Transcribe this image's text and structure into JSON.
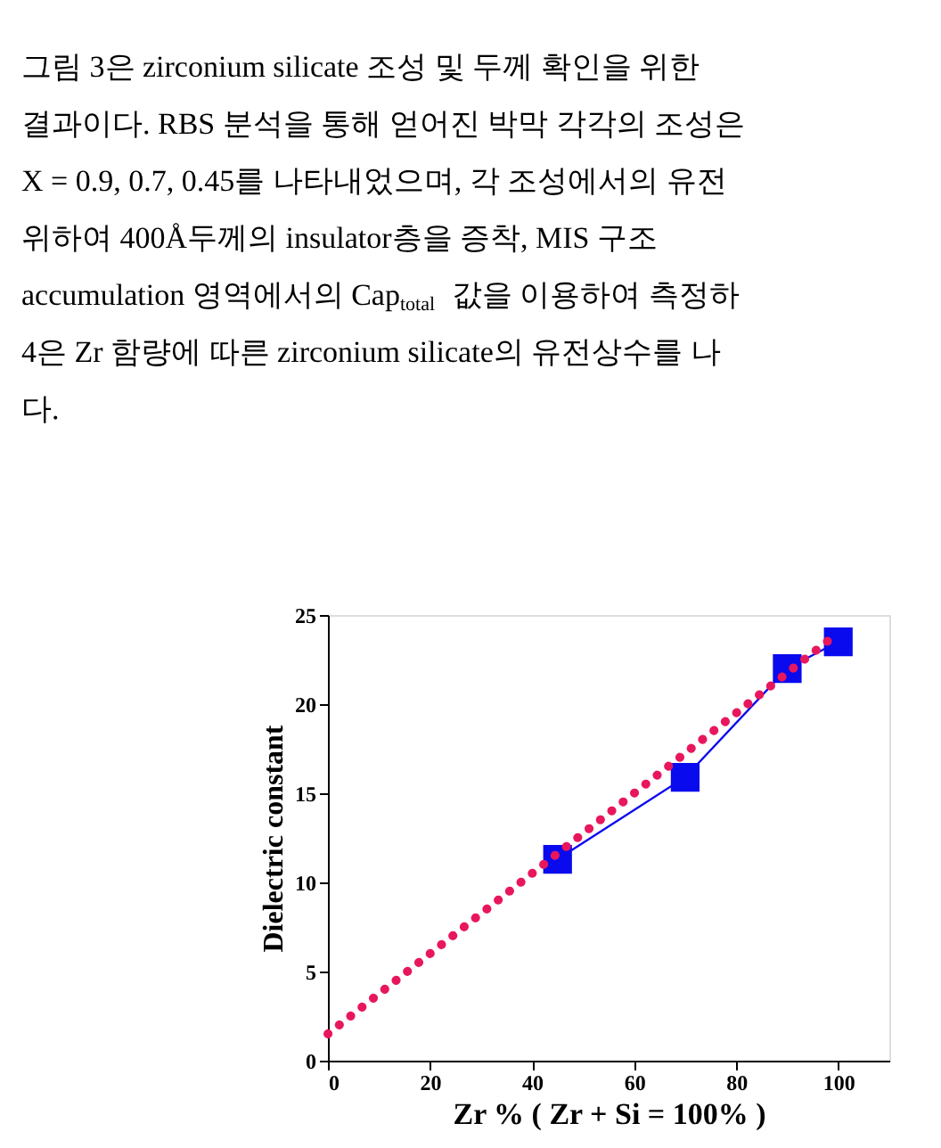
{
  "chart_data": {
    "type": "line",
    "xlabel": "Zr %   ( Zr + Si = 100% )",
    "ylabel": "Dielectric constant",
    "xlim": [
      0,
      110
    ],
    "xticks": [
      0,
      20,
      40,
      60,
      80,
      100
    ],
    "ylim": [
      0,
      25
    ],
    "yticks": [
      0,
      5,
      10,
      15,
      20,
      25
    ],
    "grid": false,
    "series": [
      {
        "color": "#0a0aee",
        "marker": "square",
        "line_style": "solid",
        "x": [
          45,
          70,
          90,
          100
        ],
        "values": [
          11.3,
          15.9,
          22,
          23.5
        ]
      },
      {
        "color": "#e8175d",
        "marker": "none",
        "line_style": "dotted",
        "x": [
          0,
          100
        ],
        "values": [
          1.5,
          24
        ]
      }
    ],
    "annotations": [
      "그림 3은 zirconium silicate 조성 및 두께 확인을 위한",
      "결과이다. RBS 분석을 통해 얻어진 박막 각각의 조성은",
      "X = 0.9, 0.7, 0.45를 나타내었으며, 각 조성에서의 유전",
      "위하여 400Å두께의 insulator층을 증착, MIS 구조",
      "accumulation 영역에서의 Cap$_{total}$ 값을 이용하여 측정하",
      "4은 Zr 함량에 따른 zirconium silicate의 유전상수를 나",
      "다."
    ]
  }
}
